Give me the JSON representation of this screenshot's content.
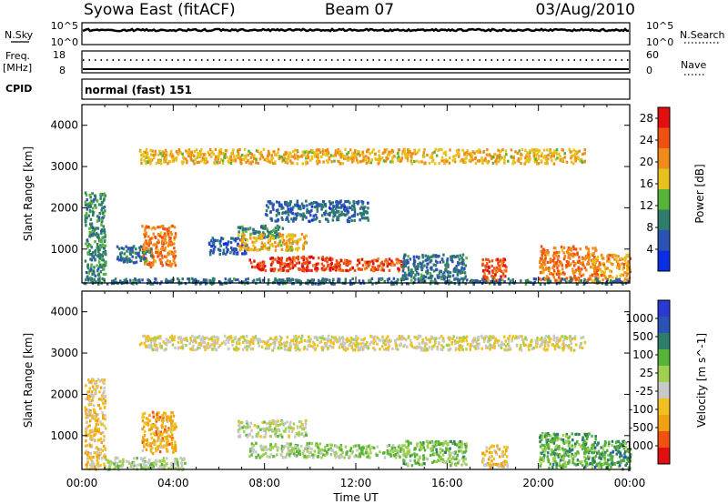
{
  "header": {
    "station": "Syowa East (fitACF)",
    "beam": "Beam 07",
    "date": "03/Aug/2010"
  },
  "noise_panel": {
    "left_label": "N.Sky",
    "right_label": "N.Search",
    "left_ticks": [
      "10^5",
      "10^0"
    ],
    "right_ticks": [
      "10^5",
      "10^0"
    ]
  },
  "freq_panel": {
    "left_label_line1": "Freq.",
    "left_label_line2": "[MHz]",
    "right_label": "Nave",
    "left_ticks": [
      "18",
      "8"
    ],
    "right_ticks": [
      "60",
      "0"
    ]
  },
  "cpid_panel": {
    "label": "CPID",
    "mode_text": "normal (fast) 151"
  },
  "colors": {
    "power": [
      "#0a2ee6",
      "#2b52b4",
      "#2e7d6b",
      "#55b33a",
      "#e8c21c",
      "#f08a1a",
      "#f05010",
      "#e01010"
    ],
    "velocity": [
      "#e01010",
      "#f05010",
      "#f0a010",
      "#f0c020",
      "#c8c8c8",
      "#a0d050",
      "#55b33a",
      "#2e7d6b",
      "#2b52b4",
      "#2a3ad0"
    ]
  },
  "chart_data": [
    {
      "type": "heatmap",
      "title": "",
      "xlabel": "Time UT",
      "ylabel": "Slant Range [km]",
      "xlim": [
        "00:00",
        "24:00"
      ],
      "ylim": [
        180,
        4500
      ],
      "x_ticks": [
        "00:00",
        "04:00",
        "08:00",
        "12:00",
        "16:00",
        "20:00",
        "00:00"
      ],
      "y_ticks": [
        "1000",
        "2000",
        "3000",
        "4000"
      ],
      "colorbar_label": "Power [dB]",
      "colorbar_ticks": [
        "4",
        "8",
        "12",
        "16",
        "20",
        "24",
        "28"
      ],
      "colorbar_range": [
        0,
        30
      ],
      "regions": [
        {
          "t": [
            0.1,
            1.0
          ],
          "r": [
            200,
            2400
          ],
          "value": 10
        },
        {
          "t": [
            2.6,
            4.1
          ],
          "r": [
            600,
            1600
          ],
          "value": 22
        },
        {
          "t": [
            1.5,
            3.0
          ],
          "r": [
            700,
            1100
          ],
          "value": 8
        },
        {
          "t": [
            5.5,
            7.2
          ],
          "r": [
            900,
            1300
          ],
          "value": 6
        },
        {
          "t": [
            6.8,
            8.8
          ],
          "r": [
            1300,
            1600
          ],
          "value": 10
        },
        {
          "t": [
            6.8,
            9.8
          ],
          "r": [
            1000,
            1400
          ],
          "value": 18
        },
        {
          "t": [
            7.3,
            11.0
          ],
          "r": [
            500,
            850
          ],
          "value": 26
        },
        {
          "t": [
            11.0,
            14.2
          ],
          "r": [
            500,
            800
          ],
          "value": 24
        },
        {
          "t": [
            8.0,
            12.5
          ],
          "r": [
            1700,
            2200
          ],
          "value": 7
        },
        {
          "t": [
            14.0,
            16.8
          ],
          "r": [
            300,
            900
          ],
          "value": 8
        },
        {
          "t": [
            17.5,
            18.6
          ],
          "r": [
            250,
            800
          ],
          "value": 24
        },
        {
          "t": [
            20.0,
            22.5
          ],
          "r": [
            250,
            1100
          ],
          "value": 22
        },
        {
          "t": [
            22.3,
            24.0
          ],
          "r": [
            200,
            900
          ],
          "value": 20
        },
        {
          "t": [
            0.0,
            24.0
          ],
          "r": [
            180,
            320
          ],
          "value": 8
        },
        {
          "t": [
            2.5,
            22.0
          ],
          "r": [
            3100,
            3450
          ],
          "value": 18
        }
      ]
    },
    {
      "type": "heatmap",
      "title": "",
      "xlabel": "Time UT",
      "ylabel": "Slant Range [km]",
      "xlim": [
        "00:00",
        "24:00"
      ],
      "ylim": [
        180,
        4500
      ],
      "x_ticks": [
        "00:00",
        "04:00",
        "08:00",
        "12:00",
        "16:00",
        "20:00",
        "00:00"
      ],
      "y_ticks": [
        "1000",
        "2000",
        "3000",
        "4000"
      ],
      "colorbar_label": "Velocity [m s^-1]",
      "colorbar_ticks": [
        "1000",
        "500",
        "100",
        "25",
        "-25",
        "-100",
        "-500",
        "-1000"
      ],
      "colorbar_range": [
        -1000,
        1000
      ],
      "regions": [
        {
          "t": [
            0.1,
            1.0
          ],
          "r": [
            200,
            2400
          ],
          "value": -300
        },
        {
          "t": [
            2.6,
            4.1
          ],
          "r": [
            600,
            1600
          ],
          "value": -400
        },
        {
          "t": [
            1.0,
            4.5
          ],
          "r": [
            200,
            500
          ],
          "value": 60
        },
        {
          "t": [
            6.8,
            9.8
          ],
          "r": [
            1000,
            1400
          ],
          "value": 0
        },
        {
          "t": [
            7.3,
            11.0
          ],
          "r": [
            500,
            850
          ],
          "value": 80
        },
        {
          "t": [
            11.0,
            14.2
          ],
          "r": [
            500,
            800
          ],
          "value": 120
        },
        {
          "t": [
            14.0,
            16.8
          ],
          "r": [
            300,
            900
          ],
          "value": 200
        },
        {
          "t": [
            17.5,
            18.6
          ],
          "r": [
            250,
            800
          ],
          "value": -300
        },
        {
          "t": [
            20.0,
            22.5
          ],
          "r": [
            250,
            1100
          ],
          "value": 300
        },
        {
          "t": [
            22.3,
            24.0
          ],
          "r": [
            200,
            900
          ],
          "value": 400
        },
        {
          "t": [
            2.5,
            22.0
          ],
          "r": [
            3100,
            3450
          ],
          "value": -150
        }
      ]
    }
  ]
}
